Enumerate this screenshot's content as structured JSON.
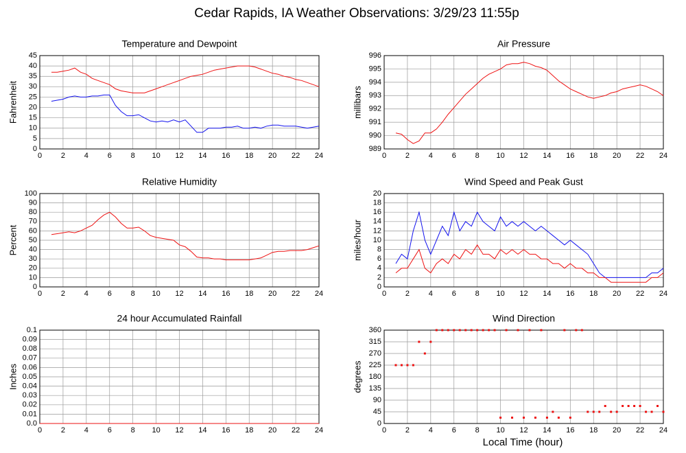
{
  "title": "Cedar Rapids, IA Weather Observations: 3/29/23 11:55p",
  "x_label": "Local Time (hour)",
  "chart_data": [
    {
      "type": "line",
      "title": "Temperature and Dewpoint",
      "y_label": "Fahrenheit",
      "x": [
        1,
        1.5,
        2,
        2.5,
        3,
        3.5,
        4,
        4.5,
        5,
        5.5,
        6,
        6.5,
        7,
        7.5,
        8,
        8.5,
        9,
        9.5,
        10,
        10.5,
        11,
        11.5,
        12,
        12.5,
        13,
        13.5,
        14,
        14.5,
        15,
        15.5,
        16,
        16.5,
        17,
        17.5,
        18,
        18.5,
        19,
        19.5,
        20,
        20.5,
        21,
        21.5,
        22,
        22.5,
        23,
        23.5,
        24
      ],
      "series": [
        {
          "color": "#ee1111",
          "values": [
            37,
            37,
            37.5,
            38,
            39,
            37,
            36,
            34,
            33,
            32,
            31,
            29,
            28,
            27.5,
            27,
            27,
            27,
            28,
            29,
            30,
            31,
            32,
            33,
            34,
            35,
            35.5,
            36,
            37,
            38,
            38.5,
            39,
            39.5,
            40,
            40,
            40,
            39.5,
            38.5,
            37.5,
            36.5,
            36,
            35,
            34.5,
            33.5,
            33,
            32,
            31,
            30
          ]
        },
        {
          "color": "#1111ee",
          "values": [
            23,
            23.5,
            24,
            25,
            25.5,
            25,
            25,
            25.5,
            25.5,
            26,
            26,
            21,
            18,
            16,
            16,
            16.5,
            15,
            13.5,
            13,
            13.5,
            13,
            14,
            13,
            14,
            11,
            8,
            8,
            10,
            10,
            10,
            10.5,
            10.5,
            11,
            10,
            10,
            10.5,
            10,
            11,
            11.5,
            11.5,
            11,
            11,
            11,
            10.5,
            10,
            10.5,
            11
          ]
        }
      ],
      "xlim": [
        0,
        24
      ],
      "xticks": [
        0,
        2,
        4,
        6,
        8,
        10,
        12,
        14,
        16,
        18,
        20,
        22,
        24
      ],
      "ylim": [
        0,
        45
      ],
      "yticks": [
        0,
        5,
        10,
        15,
        20,
        25,
        30,
        35,
        40,
        45
      ],
      "grid": true
    },
    {
      "type": "line",
      "title": "Air Pressure",
      "y_label": "millibars",
      "x": [
        1,
        1.5,
        2,
        2.5,
        3,
        3.5,
        4,
        4.5,
        5,
        5.5,
        6,
        6.5,
        7,
        7.5,
        8,
        8.5,
        9,
        9.5,
        10,
        10.5,
        11,
        11.5,
        12,
        12.5,
        13,
        13.5,
        14,
        14.5,
        15,
        15.5,
        16,
        16.5,
        17,
        17.5,
        18,
        18.5,
        19,
        19.5,
        20,
        20.5,
        21,
        21.5,
        22,
        22.5,
        23,
        23.5,
        24
      ],
      "series": [
        {
          "color": "#ee1111",
          "values": [
            990.2,
            990.1,
            989.7,
            989.4,
            989.6,
            990.2,
            990.2,
            990.5,
            991.0,
            991.6,
            992.1,
            992.6,
            993.1,
            993.5,
            993.9,
            994.3,
            994.6,
            994.8,
            995.0,
            995.3,
            995.4,
            995.4,
            995.5,
            995.4,
            995.2,
            995.1,
            994.9,
            994.5,
            994.1,
            993.8,
            993.5,
            993.3,
            993.1,
            992.9,
            992.8,
            992.9,
            993.0,
            993.2,
            993.3,
            993.5,
            993.6,
            993.7,
            993.8,
            993.7,
            993.5,
            993.3,
            993.0
          ]
        }
      ],
      "xlim": [
        0,
        24
      ],
      "xticks": [
        0,
        2,
        4,
        6,
        8,
        10,
        12,
        14,
        16,
        18,
        20,
        22,
        24
      ],
      "ylim": [
        989,
        996
      ],
      "yticks": [
        989,
        990,
        991,
        992,
        993,
        994,
        995,
        996
      ],
      "grid": true
    },
    {
      "type": "line",
      "title": "Relative Humidity",
      "y_label": "Percent",
      "x": [
        1,
        1.5,
        2,
        2.5,
        3,
        3.5,
        4,
        4.5,
        5,
        5.5,
        6,
        6.5,
        7,
        7.5,
        8,
        8.5,
        9,
        9.5,
        10,
        10.5,
        11,
        11.5,
        12,
        12.5,
        13,
        13.5,
        14,
        14.5,
        15,
        15.5,
        16,
        16.5,
        17,
        17.5,
        18,
        18.5,
        19,
        19.5,
        20,
        20.5,
        21,
        21.5,
        22,
        22.5,
        23,
        23.5,
        24
      ],
      "series": [
        {
          "color": "#ee1111",
          "values": [
            56,
            57,
            58,
            59,
            58,
            60,
            63,
            66,
            72,
            77,
            80,
            75,
            68,
            63,
            63,
            64,
            60,
            55,
            53,
            52,
            51,
            50,
            45,
            43,
            38,
            32,
            31,
            31,
            30,
            30,
            29,
            29,
            29,
            29,
            29,
            30,
            31,
            34,
            37,
            38,
            38,
            39,
            39,
            39,
            40,
            42,
            44
          ]
        }
      ],
      "xlim": [
        0,
        24
      ],
      "xticks": [
        0,
        2,
        4,
        6,
        8,
        10,
        12,
        14,
        16,
        18,
        20,
        22,
        24
      ],
      "ylim": [
        0,
        100
      ],
      "yticks": [
        0,
        10,
        20,
        30,
        40,
        50,
        60,
        70,
        80,
        90,
        100
      ],
      "grid": true
    },
    {
      "type": "line",
      "title": "Wind Speed and Peak Gust",
      "y_label": "miles/hour",
      "x": [
        1,
        1.5,
        2,
        2.5,
        3,
        3.5,
        4,
        4.5,
        5,
        5.5,
        6,
        6.5,
        7,
        7.5,
        8,
        8.5,
        9,
        9.5,
        10,
        10.5,
        11,
        11.5,
        12,
        12.5,
        13,
        13.5,
        14,
        14.5,
        15,
        15.5,
        16,
        16.5,
        17,
        17.5,
        18,
        18.5,
        19,
        19.5,
        20,
        20.5,
        21,
        21.5,
        22,
        22.5,
        23,
        23.5,
        24
      ],
      "series": [
        {
          "color": "#1111ee",
          "values": [
            5,
            7,
            6,
            12,
            16,
            10,
            7,
            10,
            13,
            11,
            16,
            12,
            14,
            13,
            16,
            14,
            13,
            12,
            15,
            13,
            14,
            13,
            14,
            13,
            12,
            13,
            12,
            11,
            10,
            9,
            10,
            9,
            8,
            7,
            5,
            3,
            2,
            2,
            2,
            2,
            2,
            2,
            2,
            2,
            3,
            3,
            4
          ]
        },
        {
          "color": "#ee1111",
          "values": [
            3,
            4,
            4,
            6,
            8,
            4,
            3,
            5,
            6,
            5,
            7,
            6,
            8,
            7,
            9,
            7,
            7,
            6,
            8,
            7,
            8,
            7,
            8,
            7,
            7,
            6,
            6,
            5,
            5,
            4,
            5,
            4,
            4,
            3,
            3,
            2,
            2,
            1,
            1,
            1,
            1,
            1,
            1,
            1,
            2,
            2,
            3
          ]
        }
      ],
      "xlim": [
        0,
        24
      ],
      "xticks": [
        0,
        2,
        4,
        6,
        8,
        10,
        12,
        14,
        16,
        18,
        20,
        22,
        24
      ],
      "ylim": [
        0,
        20
      ],
      "yticks": [
        0,
        2,
        4,
        6,
        8,
        10,
        12,
        14,
        16,
        18,
        20
      ],
      "grid": true
    },
    {
      "type": "line",
      "title": "24 hour Accumulated Rainfall",
      "y_label": "Inches",
      "x": [
        0,
        24
      ],
      "series": [
        {
          "color": "#ee1111",
          "values": [
            0,
            0
          ]
        }
      ],
      "xlim": [
        0,
        24
      ],
      "xticks": [
        0,
        2,
        4,
        6,
        8,
        10,
        12,
        14,
        16,
        18,
        20,
        22,
        24
      ],
      "ylim": [
        0,
        0.1
      ],
      "yticks": [
        {
          "value": 0,
          "label": "0.0"
        },
        0.01,
        0.02,
        0.03,
        0.04,
        0.05,
        0.06,
        0.07,
        0.08,
        0.09,
        0.1
      ],
      "grid": true
    },
    {
      "type": "scatter",
      "title": "Wind Direction",
      "y_label": "degrees",
      "x": [
        1,
        1.5,
        2,
        2.5,
        3,
        3.5,
        4,
        4.5,
        5,
        5.5,
        6,
        6.5,
        7,
        7.5,
        8,
        8.5,
        9,
        9.5,
        10,
        10.5,
        11,
        11.5,
        12,
        12.5,
        13,
        13.5,
        14,
        14.5,
        15,
        15.5,
        16,
        16.5,
        17,
        17.5,
        18,
        18.5,
        19,
        19.5,
        20,
        20.5,
        21,
        21.5,
        22,
        22.5,
        23,
        23.5,
        24
      ],
      "series": [
        {
          "color": "#ee1111",
          "values": [
            225,
            225,
            225,
            225,
            315,
            270,
            315,
            360,
            360,
            360,
            360,
            360,
            360,
            360,
            360,
            360,
            360,
            360,
            22.5,
            360,
            22.5,
            360,
            22.5,
            360,
            22.5,
            360,
            22.5,
            45,
            22.5,
            360,
            22.5,
            360,
            360,
            45,
            45,
            45,
            67.5,
            45,
            45,
            67.5,
            67.5,
            67.5,
            67.5,
            45,
            45,
            67.5,
            45
          ]
        }
      ],
      "xlim": [
        0,
        24
      ],
      "xticks": [
        0,
        2,
        4,
        6,
        8,
        10,
        12,
        14,
        16,
        18,
        20,
        22,
        24
      ],
      "ylim": [
        0,
        360
      ],
      "yticks": [
        0,
        45,
        90,
        135,
        180,
        225,
        270,
        315,
        360
      ],
      "grid": true
    }
  ]
}
